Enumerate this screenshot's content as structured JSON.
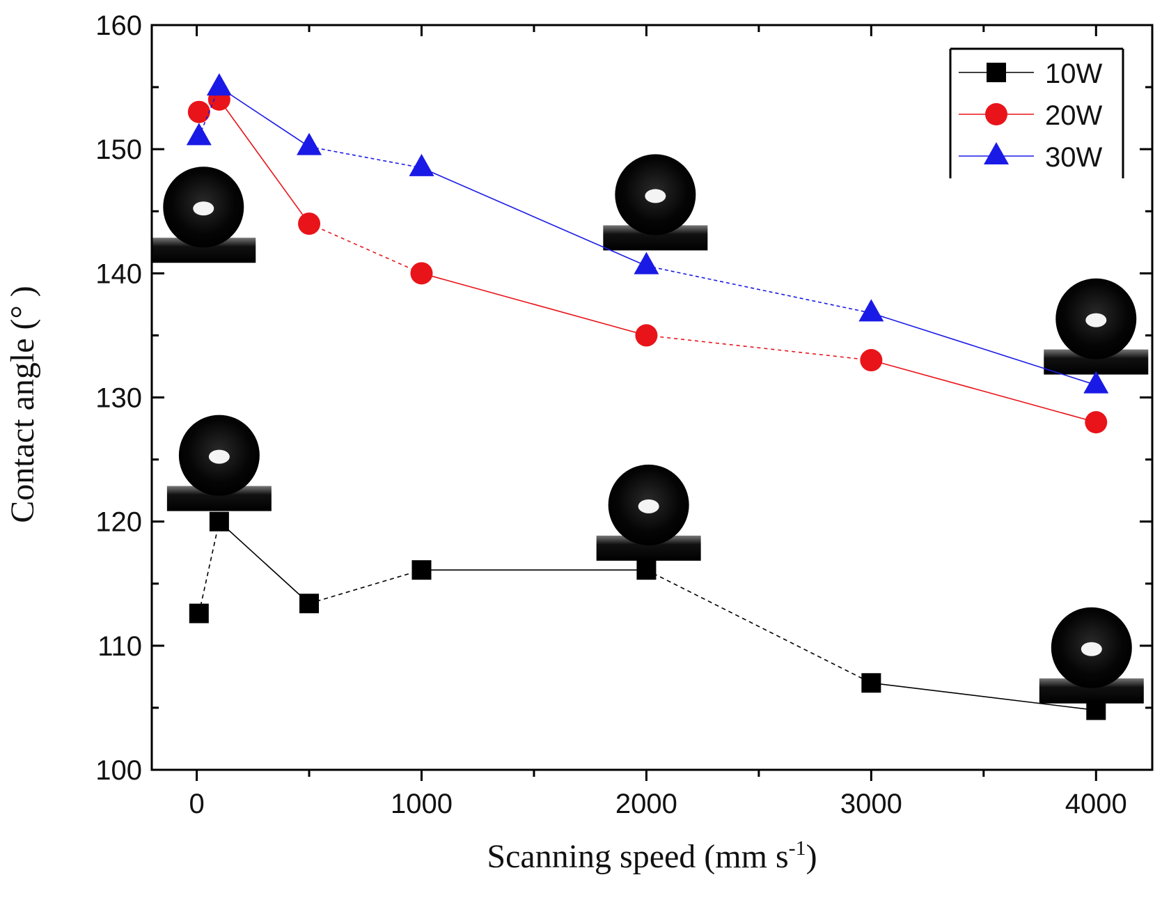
{
  "chart_data": {
    "type": "line",
    "title": "",
    "xlabel": "Scanning speed (mm s",
    "xlabel_superscript": "-1",
    "xlabel_close": ")",
    "ylabel": "Contact angle (° )",
    "xlim": [
      -200,
      4250
    ],
    "ylim": [
      100,
      160
    ],
    "xticks": [
      0,
      1000,
      2000,
      3000,
      4000
    ],
    "xtick_labels": [
      "0",
      "1000",
      "2000",
      "3000",
      "4000"
    ],
    "xminor_ticks": [
      500,
      1500,
      2500,
      3500
    ],
    "yticks": [
      100,
      110,
      120,
      130,
      140,
      150,
      160
    ],
    "ytick_labels": [
      "100",
      "110",
      "120",
      "130",
      "140",
      "150",
      "160"
    ],
    "grid": false,
    "legend_position": "top-right",
    "series": [
      {
        "name": "10W",
        "marker": "square",
        "color": "#000000",
        "x": [
          10,
          100,
          500,
          1000,
          2000,
          3000,
          4000
        ],
        "y": [
          112.6,
          120.0,
          113.4,
          116.1,
          116.1,
          107.0,
          104.8
        ]
      },
      {
        "name": "20W",
        "marker": "circle",
        "color": "#e8141a",
        "x": [
          10,
          100,
          500,
          1000,
          2000,
          3000,
          4000
        ],
        "y": [
          153.0,
          154.0,
          144.0,
          140.0,
          135.0,
          133.0,
          128.0
        ]
      },
      {
        "name": "30W",
        "marker": "triangle",
        "color": "#1a1ae6",
        "x": [
          10,
          100,
          500,
          1000,
          2000,
          3000,
          4000
        ],
        "y": [
          151.0,
          155.0,
          150.2,
          148.5,
          140.6,
          136.8,
          131.0
        ]
      }
    ],
    "droplet_insets": [
      {
        "id": "droplet-30w-low-speed",
        "anchor_x": 30,
        "anchor_y": 145
      },
      {
        "id": "droplet-30w-2000",
        "anchor_x": 2040,
        "anchor_y": 146
      },
      {
        "id": "droplet-30w-4000",
        "anchor_x": 4000,
        "anchor_y": 136
      },
      {
        "id": "droplet-10w-low-speed",
        "anchor_x": 100,
        "anchor_y": 125
      },
      {
        "id": "droplet-10w-2000",
        "anchor_x": 2010,
        "anchor_y": 121
      },
      {
        "id": "droplet-10w-4000",
        "anchor_x": 3980,
        "anchor_y": 109.5
      }
    ]
  }
}
